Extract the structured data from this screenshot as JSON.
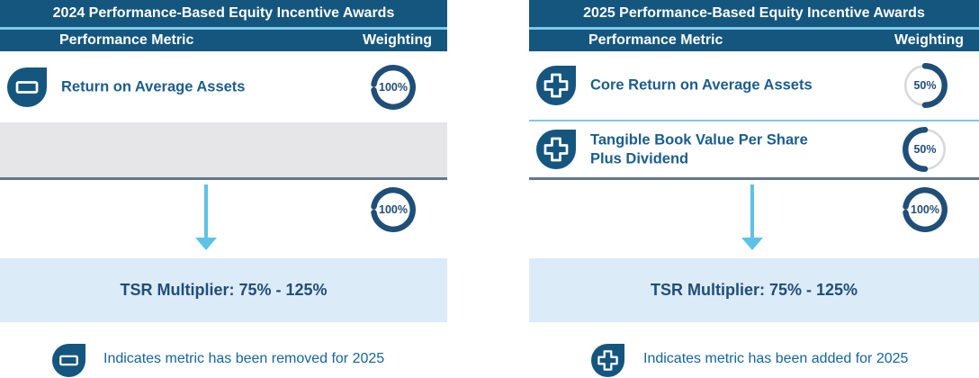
{
  "panels": [
    {
      "title": "2024 Performance-Based Equity Incentive Awards",
      "columns": {
        "metric": "Performance Metric",
        "weighting": "Weighting"
      },
      "rows": [
        {
          "icon": "removed",
          "label": "Return on Average Assets",
          "weighting_label": "100%",
          "donut": {
            "value": 100,
            "side": "full"
          }
        }
      ],
      "empty_removed_row": true,
      "total_weighting": {
        "label": "100%",
        "donut": {
          "value": 100,
          "side": "full"
        }
      },
      "tsr_label": "TSR Multiplier: 75% - 125%",
      "legend": {
        "icon": "removed",
        "text": "Indicates metric has been removed for 2025"
      }
    },
    {
      "title": "2025 Performance-Based Equity Incentive Awards",
      "columns": {
        "metric": "Performance Metric",
        "weighting": "Weighting"
      },
      "rows": [
        {
          "icon": "added",
          "label": "Core Return on Average Assets",
          "weighting_label": "50%",
          "donut": {
            "value": 50,
            "side": "right"
          }
        },
        {
          "icon": "added",
          "label": "Tangible Book Value Per Share Plus Dividend",
          "weighting_label": "50%",
          "donut": {
            "value": 50,
            "side": "left"
          }
        }
      ],
      "total_weighting": {
        "label": "100%",
        "donut": {
          "value": 100,
          "side": "full"
        }
      },
      "tsr_label": "TSR Multiplier: 75% - 125%",
      "legend": {
        "icon": "added",
        "text": "Indicates metric has been added for 2025"
      }
    }
  ],
  "colors": {
    "header_navy": "#15567F",
    "accent_light_blue": "#7EC9E8",
    "ring_navy": "#1F4E79",
    "metric_text": "#1B5D8F",
    "legend_text": "#1464A0",
    "tsr_bg": "#DCEBF8",
    "empty_row_gray": "#E6E6E8",
    "rule_slate": "#64778F",
    "arrow_blue": "#5EC1E8",
    "donut_gray": "#D9D9D9"
  }
}
